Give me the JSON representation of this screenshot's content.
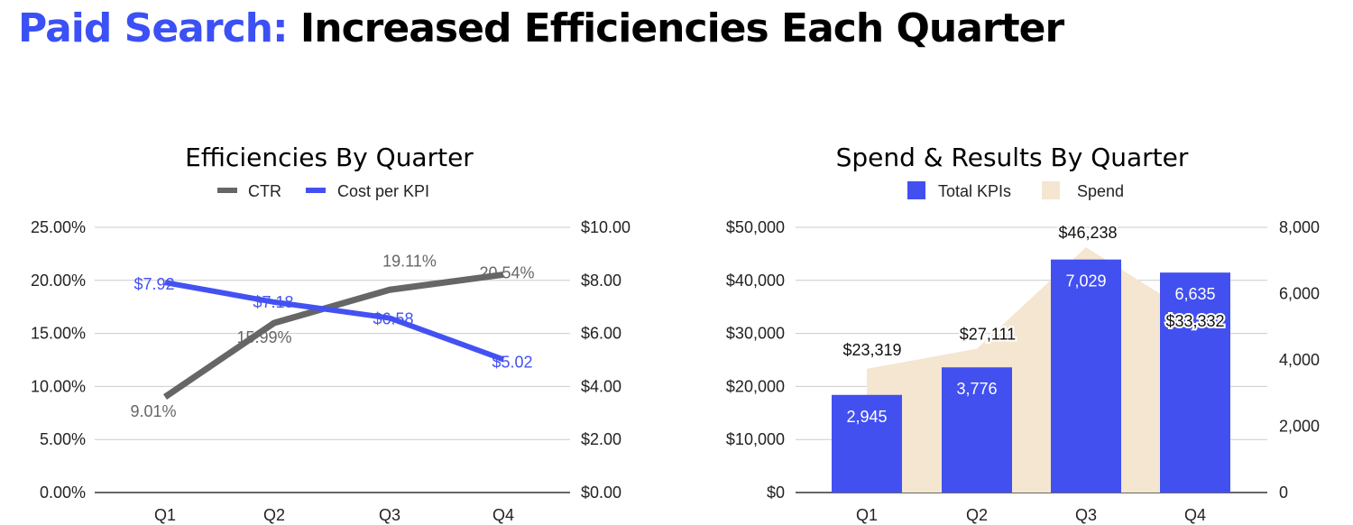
{
  "headline": {
    "accent": "Paid Search:",
    "rest": " Increased Efficiencies Each Quarter"
  },
  "colors": {
    "accent": "#3b50f5",
    "ctr": "#666666",
    "cpk": "#4451f2",
    "kpi_bar": "#4250f0",
    "spend_area": "#f4e6d0"
  },
  "chart_data": [
    {
      "type": "line",
      "title": "Efficiencies By Quarter",
      "categories": [
        "Q1",
        "Q2",
        "Q3",
        "Q4"
      ],
      "series": [
        {
          "name": "CTR",
          "axis": "left",
          "values": [
            9.01,
            15.99,
            19.11,
            20.54
          ],
          "labels": [
            "9.01%",
            "15.99%",
            "19.11%",
            "20.54%"
          ]
        },
        {
          "name": "Cost per KPI",
          "axis": "right",
          "values": [
            7.92,
            7.18,
            6.58,
            5.02
          ],
          "labels": [
            "$7.92",
            "$7.18",
            "$6.58",
            "$5.02"
          ]
        }
      ],
      "ylim_left": [
        0,
        25
      ],
      "yticks_left": [
        "0.00%",
        "5.00%",
        "10.00%",
        "15.00%",
        "20.00%",
        "25.00%"
      ],
      "ylim_right": [
        0,
        10
      ],
      "yticks_right": [
        "$0.00",
        "$2.00",
        "$4.00",
        "$6.00",
        "$8.00",
        "$10.00"
      ],
      "legend": "top",
      "grid": true
    },
    {
      "type": "bar",
      "title": "Spend & Results By Quarter",
      "categories": [
        "Q1",
        "Q2",
        "Q3",
        "Q4"
      ],
      "series": [
        {
          "name": "Total KPIs",
          "type": "bar",
          "axis": "right",
          "values": [
            2945,
            3776,
            7029,
            6635
          ],
          "labels": [
            "2,945",
            "3,776",
            "7,029",
            "6,635"
          ]
        },
        {
          "name": "Spend",
          "type": "area",
          "axis": "left",
          "values": [
            23319,
            27111,
            46238,
            33332
          ],
          "labels": [
            "$23,319",
            "$27,111",
            "$46,238",
            "$33,332"
          ]
        }
      ],
      "ylim_left": [
        0,
        50000
      ],
      "yticks_left": [
        "$0",
        "$10,000",
        "$20,000",
        "$30,000",
        "$40,000",
        "$50,000"
      ],
      "ylim_right": [
        0,
        8000
      ],
      "yticks_right": [
        "0",
        "2,000",
        "4,000",
        "6,000",
        "8,000"
      ],
      "legend": "top",
      "grid": true
    }
  ]
}
